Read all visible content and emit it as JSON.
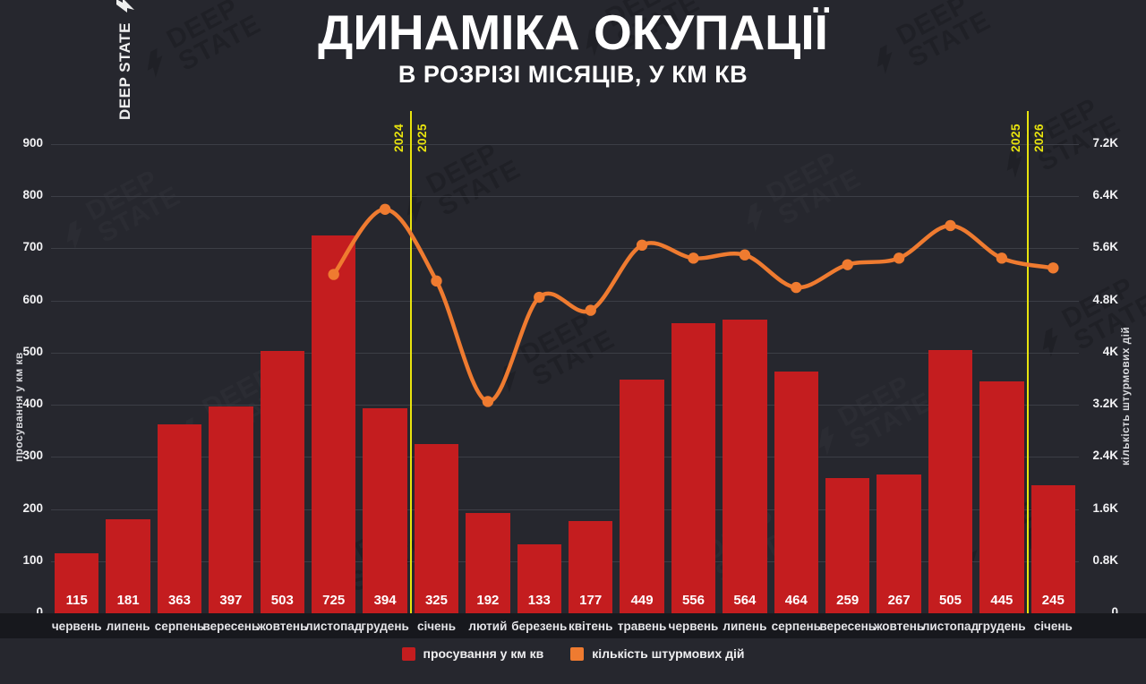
{
  "title": "ДИНАМІКА ОКУПАЦІЇ",
  "subtitle": "В РОЗРІЗІ МІСЯЦІВ, У КМ КВ",
  "brand": {
    "name": "DEEP STATE"
  },
  "watermark": {
    "line1": "DEEP",
    "line2": "STATE"
  },
  "colors": {
    "background": "#26272e",
    "bar": "#c41d1f",
    "line": "#ef7b30",
    "year_divider": "#e9e40e",
    "grid": "#3c3e46",
    "month_strip": "#17181d"
  },
  "chart_data": {
    "type": "bar+line",
    "categories": [
      "червень",
      "липень",
      "серпень",
      "вересень",
      "жовтень",
      "листопад",
      "грудень",
      "січень",
      "лютий",
      "березень",
      "квітень",
      "травень",
      "червень",
      "липень",
      "серпень",
      "вересень",
      "жовтень",
      "листопад",
      "грудень",
      "січень"
    ],
    "series": [
      {
        "name": "просування у км кв",
        "type": "bar",
        "axis": "left",
        "color": "#c41d1f",
        "values": [
          115,
          181,
          363,
          397,
          503,
          725,
          394,
          325,
          192,
          133,
          177,
          449,
          556,
          564,
          464,
          259,
          267,
          505,
          445,
          245
        ]
      },
      {
        "name": "кількість штурмових дій",
        "type": "line",
        "axis": "right",
        "color": "#ef7b30",
        "values": [
          null,
          null,
          null,
          null,
          null,
          5200,
          6200,
          5100,
          3250,
          4850,
          4650,
          5650,
          5450,
          5500,
          5000,
          5350,
          5450,
          5950,
          5450,
          5300
        ]
      }
    ],
    "left_axis": {
      "label": "просування у км кв",
      "min": 0,
      "max": 900,
      "ticks": [
        {
          "label": "900",
          "value": 900
        },
        {
          "label": "800",
          "value": 800
        },
        {
          "label": "700",
          "value": 700
        },
        {
          "label": "600",
          "value": 600
        },
        {
          "label": "500",
          "value": 500
        },
        {
          "label": "400",
          "value": 400
        },
        {
          "label": "300",
          "value": 300
        },
        {
          "label": "200",
          "value": 200
        },
        {
          "label": "100",
          "value": 100
        },
        {
          "label": "0",
          "value": 0
        }
      ]
    },
    "right_axis": {
      "label": "кількість штурмових дій",
      "min": 0,
      "max": 7200,
      "ticks": [
        {
          "label": "7.2K",
          "value": 7200
        },
        {
          "label": "6.4K",
          "value": 6400
        },
        {
          "label": "5.6K",
          "value": 5600
        },
        {
          "label": "4.8K",
          "value": 4800
        },
        {
          "label": "4K",
          "value": 4000
        },
        {
          "label": "3.2K",
          "value": 3200
        },
        {
          "label": "2.4K",
          "value": 2400
        },
        {
          "label": "1.6K",
          "value": 1600
        },
        {
          "label": "0.8K",
          "value": 800
        },
        {
          "label": "0",
          "value": 0
        }
      ]
    },
    "year_dividers": [
      {
        "boundary_index": 7,
        "left_label": "2024",
        "right_label": "2025"
      },
      {
        "boundary_index": 19,
        "left_label": "2025",
        "right_label": "2026"
      }
    ],
    "legend": [
      {
        "label": "просування у км кв",
        "color": "#c41d1f"
      },
      {
        "label": "кількість штурмових дій",
        "color": "#ef7b30"
      }
    ],
    "grid": true,
    "legend_position": "bottom"
  }
}
